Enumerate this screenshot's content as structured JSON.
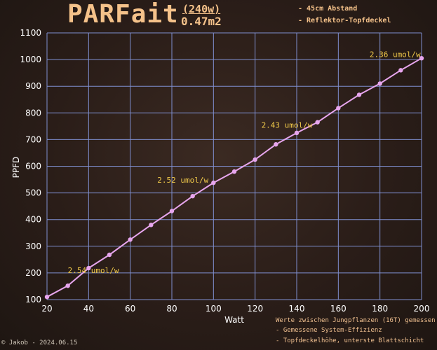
{
  "header": {
    "title": "PARFait",
    "power": "(240w)",
    "area": "0.47m2",
    "info_lines": [
      "- 45cm Abstand",
      "- Reflektor-Topfdeckel"
    ]
  },
  "footer": {
    "notes": [
      "Werte zwischen Jungpflanzen (16T) gemessen",
      "- Gemessene System-Effizienz",
      "- Topfdeckelhöhe, unterste Blattschicht"
    ],
    "signature": "© Jakob - 2024.06.15"
  },
  "chart_data": {
    "type": "line",
    "xlabel": "Watt",
    "ylabel": "PPFD",
    "xlim": [
      20,
      200
    ],
    "ylim": [
      100,
      1100
    ],
    "xticks": [
      20,
      40,
      60,
      80,
      100,
      120,
      140,
      160,
      180,
      200
    ],
    "yticks": [
      100,
      200,
      300,
      400,
      500,
      600,
      700,
      800,
      900,
      1000,
      1100
    ],
    "grid": true,
    "colors": {
      "line": "#e7a6ee",
      "grid": "#7f8fd0",
      "annotation": "#f0c94a"
    },
    "series": [
      {
        "x": [
          20,
          30,
          40,
          50,
          60,
          70,
          80,
          90,
          100,
          110,
          120,
          130,
          140,
          150,
          160,
          170,
          180,
          190,
          200
        ],
        "y": [
          110,
          152,
          218,
          268,
          325,
          380,
          432,
          488,
          538,
          580,
          625,
          682,
          725,
          765,
          818,
          868,
          910,
          960,
          1005
        ]
      }
    ],
    "annotations": [
      {
        "text": "2.54 umol/w",
        "x": 30,
        "y": 200
      },
      {
        "text": "2.52 umol/w",
        "x": 73,
        "y": 538
      },
      {
        "text": "2.43 umol/w",
        "x": 123,
        "y": 745
      },
      {
        "text": "2.36 umol/w",
        "x": 175,
        "y": 1010
      }
    ]
  }
}
